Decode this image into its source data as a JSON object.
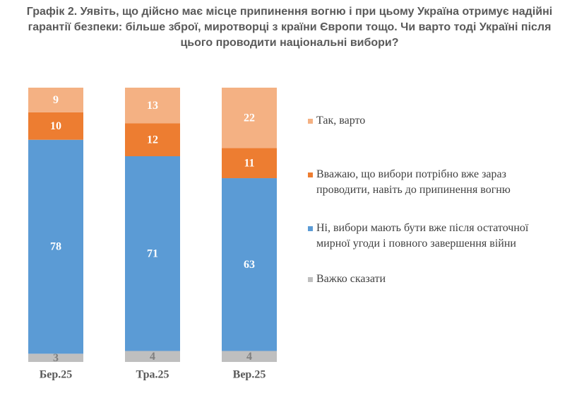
{
  "chart_data": {
    "type": "stacked-bar",
    "title": "Графік 2. Уявіть, що дійсно має місце припинення вогню і при цьому Україна отримує надійні гарантії безпеки: більше зброї, миротворці з країни Європи тощо. Чи варто тоді Україні після цього проводити національні вибори?",
    "categories": [
      "Бер.25",
      "Тра.25",
      "Вер.25"
    ],
    "series": [
      {
        "name": "Важко сказати",
        "color": "#bfbfbf",
        "values": [
          3,
          4,
          4
        ]
      },
      {
        "name": "Ні, вибори мають бути вже після остаточної мирної угоди і повного завершення війни",
        "color": "#5b9bd5",
        "values": [
          78,
          71,
          63
        ]
      },
      {
        "name": "Вважаю, що вибори потрібно вже зараз проводити, навіть до припинення вогню",
        "color": "#ed7d31",
        "values": [
          10,
          12,
          11
        ]
      },
      {
        "name": "Так, варто",
        "color": "#f4b183",
        "values": [
          9,
          13,
          22
        ]
      }
    ]
  }
}
